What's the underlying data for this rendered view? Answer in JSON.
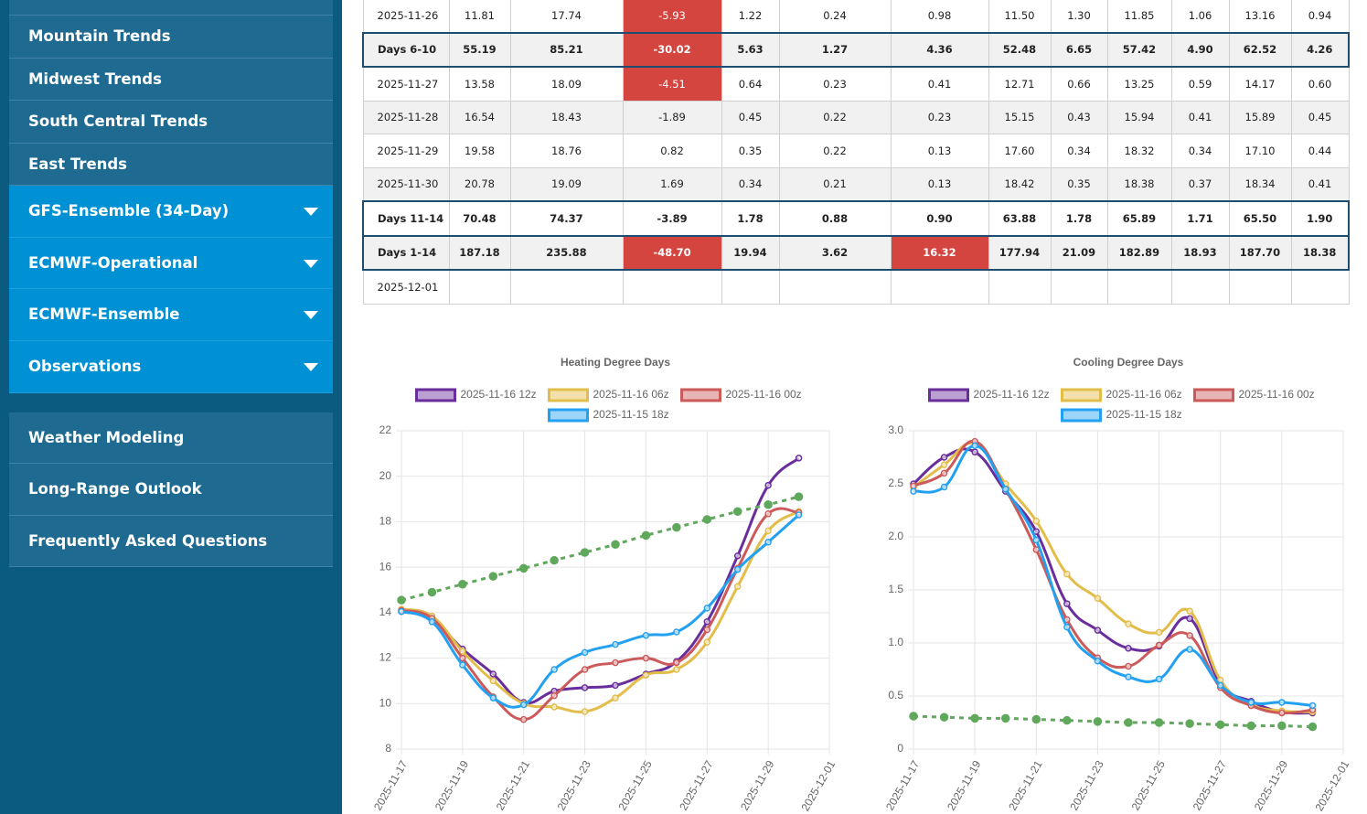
{
  "sidebar": {
    "items": [
      "Mountain Trends",
      "Midwest Trends",
      "South Central Trends",
      "East Trends"
    ],
    "dropdowns": [
      "GFS-Ensemble (34-Day)",
      "ECMWF-Operational",
      "ECMWF-Ensemble",
      "Observations"
    ],
    "links": [
      "Weather Modeling",
      "Long-Range Outlook",
      "Frequently Asked Questions"
    ]
  },
  "table": {
    "rows": [
      {
        "cells": [
          "2025-11-26",
          "11.81",
          "17.74",
          "-5.93",
          "1.22",
          "0.24",
          "0.98",
          "11.50",
          "1.30",
          "11.85",
          "1.06",
          "13.16",
          "0.94"
        ],
        "highlight": [
          3
        ]
      },
      {
        "cells": [
          "Days 6-10",
          "55.19",
          "85.21",
          "-30.02",
          "5.63",
          "1.27",
          "4.36",
          "52.48",
          "6.65",
          "57.42",
          "4.90",
          "62.52",
          "4.26"
        ],
        "highlight": [
          3
        ],
        "bold": true
      },
      {
        "cells": [
          "2025-11-27",
          "13.58",
          "18.09",
          "-4.51",
          "0.64",
          "0.23",
          "0.41",
          "12.71",
          "0.66",
          "13.25",
          "0.59",
          "14.17",
          "0.60"
        ],
        "highlight": [
          3
        ]
      },
      {
        "cells": [
          "2025-11-28",
          "16.54",
          "18.43",
          "-1.89",
          "0.45",
          "0.22",
          "0.23",
          "15.15",
          "0.43",
          "15.94",
          "0.41",
          "15.89",
          "0.45"
        ]
      },
      {
        "cells": [
          "2025-11-29",
          "19.58",
          "18.76",
          "0.82",
          "0.35",
          "0.22",
          "0.13",
          "17.60",
          "0.34",
          "18.32",
          "0.34",
          "17.10",
          "0.44"
        ]
      },
      {
        "cells": [
          "2025-11-30",
          "20.78",
          "19.09",
          "1.69",
          "0.34",
          "0.21",
          "0.13",
          "18.42",
          "0.35",
          "18.38",
          "0.37",
          "18.34",
          "0.41"
        ]
      },
      {
        "cells": [
          "Days 11-14",
          "70.48",
          "74.37",
          "-3.89",
          "1.78",
          "0.88",
          "0.90",
          "63.88",
          "1.78",
          "65.89",
          "1.71",
          "65.50",
          "1.90"
        ],
        "bold": true
      },
      {
        "cells": [
          "Days 1-14",
          "187.18",
          "235.88",
          "-48.70",
          "19.94",
          "3.62",
          "16.32",
          "177.94",
          "21.09",
          "182.89",
          "18.93",
          "187.70",
          "18.38"
        ],
        "highlight": [
          3,
          6
        ],
        "bold": true
      },
      {
        "cells": [
          "2025-12-01"
        ]
      }
    ]
  },
  "chart_data": [
    {
      "type": "line",
      "title": "Heating Degree Days",
      "grid": true,
      "legend": "top",
      "x": [
        "2025-11-17",
        "2025-11-18",
        "2025-11-19",
        "2025-11-20",
        "2025-11-21",
        "2025-11-22",
        "2025-11-23",
        "2025-11-24",
        "2025-11-25",
        "2025-11-26",
        "2025-11-27",
        "2025-11-28",
        "2025-11-29",
        "2025-11-30"
      ],
      "xlim": [
        "2025-11-17",
        "2025-12-01"
      ],
      "xticks": [
        "2025-11-17",
        "2025-11-19",
        "2025-11-21",
        "2025-11-23",
        "2025-11-25",
        "2025-11-27",
        "2025-11-29",
        "2025-12-01"
      ],
      "ylim": [
        8,
        22
      ],
      "yticks": [
        8,
        10,
        12,
        14,
        16,
        18,
        20,
        22
      ],
      "series": [
        {
          "name": "2025-11-16 12z",
          "color": "#6a2d9c",
          "values": [
            14.05,
            13.7,
            12.4,
            11.3,
            10.05,
            10.55,
            10.7,
            10.8,
            11.3,
            11.85,
            13.6,
            16.5,
            19.6,
            20.8
          ]
        },
        {
          "name": "2025-11-16 06z",
          "color": "#e3bd4a",
          "values": [
            14.15,
            13.85,
            12.3,
            11.0,
            10.0,
            9.85,
            9.65,
            10.25,
            11.25,
            11.5,
            12.7,
            15.15,
            17.6,
            18.45
          ]
        },
        {
          "name": "2025-11-16 00z",
          "color": "#cd5a5a",
          "values": [
            14.1,
            13.75,
            12.0,
            10.3,
            9.3,
            10.35,
            11.5,
            11.8,
            12.0,
            11.8,
            13.25,
            15.95,
            18.35,
            18.4
          ]
        },
        {
          "name": "2025-11-15 18z",
          "color": "#23a1f0",
          "values": [
            14.05,
            13.6,
            11.7,
            10.25,
            9.95,
            11.5,
            12.25,
            12.6,
            13.0,
            13.15,
            14.2,
            15.9,
            17.1,
            18.3
          ]
        },
        {
          "color": "#5fa85c",
          "dash": true,
          "values": [
            14.55,
            14.9,
            15.25,
            15.6,
            15.95,
            16.3,
            16.65,
            17.0,
            17.4,
            17.75,
            18.1,
            18.45,
            18.75,
            19.1
          ]
        }
      ]
    },
    {
      "type": "line",
      "title": "Cooling Degree Days",
      "grid": true,
      "legend": "top",
      "x": [
        "2025-11-17",
        "2025-11-18",
        "2025-11-19",
        "2025-11-20",
        "2025-11-21",
        "2025-11-22",
        "2025-11-23",
        "2025-11-24",
        "2025-11-25",
        "2025-11-26",
        "2025-11-27",
        "2025-11-28",
        "2025-11-29",
        "2025-11-30"
      ],
      "xlim": [
        "2025-11-17",
        "2025-12-01"
      ],
      "xticks": [
        "2025-11-17",
        "2025-11-19",
        "2025-11-21",
        "2025-11-23",
        "2025-11-25",
        "2025-11-27",
        "2025-11-29",
        "2025-12-01"
      ],
      "ylim": [
        0,
        3
      ],
      "yticks": [
        0,
        0.5,
        {
          "value": 1,
          "label": "1.0"
        },
        1.5,
        {
          "value": 2,
          "label": "2.0"
        },
        2.5,
        {
          "value": 3,
          "label": "3.0"
        }
      ],
      "series": [
        {
          "name": "2025-11-16 12z",
          "color": "#6a2d9c",
          "values": [
            2.5,
            2.75,
            2.8,
            2.43,
            2.05,
            1.37,
            1.12,
            0.95,
            0.97,
            1.23,
            0.62,
            0.45,
            0.35,
            0.34
          ]
        },
        {
          "name": "2025-11-16 06z",
          "color": "#e3bd4a",
          "values": [
            2.47,
            2.68,
            2.88,
            2.5,
            2.15,
            1.65,
            1.42,
            1.18,
            1.1,
            1.3,
            0.65,
            0.42,
            0.36,
            0.35
          ]
        },
        {
          "name": "2025-11-16 00z",
          "color": "#cd5a5a",
          "values": [
            2.48,
            2.6,
            2.9,
            2.45,
            1.88,
            1.22,
            0.86,
            0.78,
            0.98,
            1.07,
            0.58,
            0.41,
            0.34,
            0.37
          ]
        },
        {
          "name": "2025-11-15 18z",
          "color": "#23a1f0",
          "values": [
            2.43,
            2.47,
            2.86,
            2.45,
            1.97,
            1.15,
            0.83,
            0.68,
            0.66,
            0.94,
            0.6,
            0.44,
            0.44,
            0.41
          ]
        },
        {
          "color": "#5fa85c",
          "dash": true,
          "values": [
            0.31,
            0.3,
            0.29,
            0.29,
            0.28,
            0.27,
            0.26,
            0.25,
            0.25,
            0.24,
            0.23,
            0.22,
            0.22,
            0.21
          ]
        }
      ]
    }
  ]
}
